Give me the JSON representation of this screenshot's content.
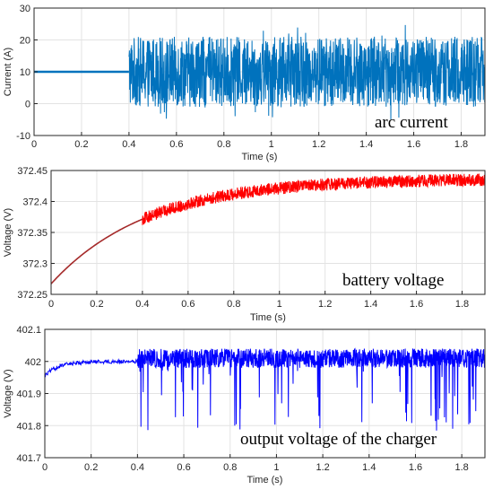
{
  "chart_data": [
    {
      "type": "line",
      "annotation": "arc current",
      "xlabel": "Time (s)",
      "ylabel": "Current (A)",
      "xlim": [
        0,
        1.9
      ],
      "ylim": [
        -10,
        30
      ],
      "xticks": [
        0,
        0.2,
        0.4,
        0.6,
        0.8,
        1,
        1.2,
        1.4,
        1.6,
        1.8
      ],
      "xtick_labels": [
        "0",
        "0.2",
        "0.4",
        "0.6",
        "0.8",
        "1",
        "1.2",
        "1.4",
        "1.6",
        "1.8"
      ],
      "yticks": [
        -10,
        0,
        10,
        20,
        30
      ],
      "ytick_labels": [
        "-10",
        "0",
        "10",
        "20",
        "30"
      ],
      "grid": true,
      "series": [
        {
          "color": "#0072bd",
          "description": "constant before arc, then high-frequency noise band",
          "steady_value": 10,
          "noise_start": 0.4,
          "noise_mean": 10,
          "noise_band": [
            -1,
            21
          ],
          "spike_range": [
            -5,
            25
          ],
          "x_end": 1.9
        }
      ]
    },
    {
      "type": "line",
      "annotation": "battery voltage",
      "xlabel": "Time (s)",
      "ylabel": "Voltage (V)",
      "xlim": [
        0,
        1.9
      ],
      "ylim": [
        372.25,
        372.45
      ],
      "xticks": [
        0,
        0.2,
        0.4,
        0.6,
        0.8,
        1,
        1.2,
        1.4,
        1.6,
        1.8
      ],
      "xtick_labels": [
        "0",
        "0.2",
        "0.4",
        "0.6",
        "0.8",
        "1",
        "1.2",
        "1.4",
        "1.6",
        "1.8"
      ],
      "yticks": [
        372.25,
        372.3,
        372.35,
        372.4,
        372.45
      ],
      "ytick_labels": [
        "372.25",
        "372.3",
        "372.35",
        "372.4",
        "372.45"
      ],
      "grid": true,
      "series": [
        {
          "color": "#ff0000",
          "smooth_color": "#a52a2a",
          "description": "exponential rise from 372.267, noisy after 0.4 s",
          "start_value": 372.267,
          "final_value": 372.437,
          "time_constant": 0.42,
          "noise_start": 0.4,
          "noise_halfwidth": 0.01,
          "x_end": 1.9
        }
      ]
    },
    {
      "type": "line",
      "annotation": "output voltage of the charger",
      "xlabel": "Time (s)",
      "ylabel": "Voltage (V)",
      "xlim": [
        0,
        1.9
      ],
      "ylim": [
        401.7,
        402.1
      ],
      "xticks": [
        0,
        0.2,
        0.4,
        0.6,
        0.8,
        1,
        1.2,
        1.4,
        1.6,
        1.8
      ],
      "xtick_labels": [
        "0",
        "0.2",
        "0.4",
        "0.6",
        "0.8",
        "1",
        "1.2",
        "1.4",
        "1.6",
        "1.8"
      ],
      "yticks": [
        401.7,
        401.8,
        401.9,
        402,
        402.1
      ],
      "ytick_labels": [
        "401.7",
        "401.8",
        "401.9",
        "402",
        "402.1"
      ],
      "grid": true,
      "series": [
        {
          "color": "#0000ff",
          "description": "settles near 402.0, noisy with downward spikes after 0.4 s",
          "start_value": 401.955,
          "steady_value": 402.0,
          "noise_start": 0.4,
          "noise_band": [
            401.98,
            402.04
          ],
          "spike_min": 401.78,
          "x_end": 1.9
        }
      ]
    }
  ]
}
